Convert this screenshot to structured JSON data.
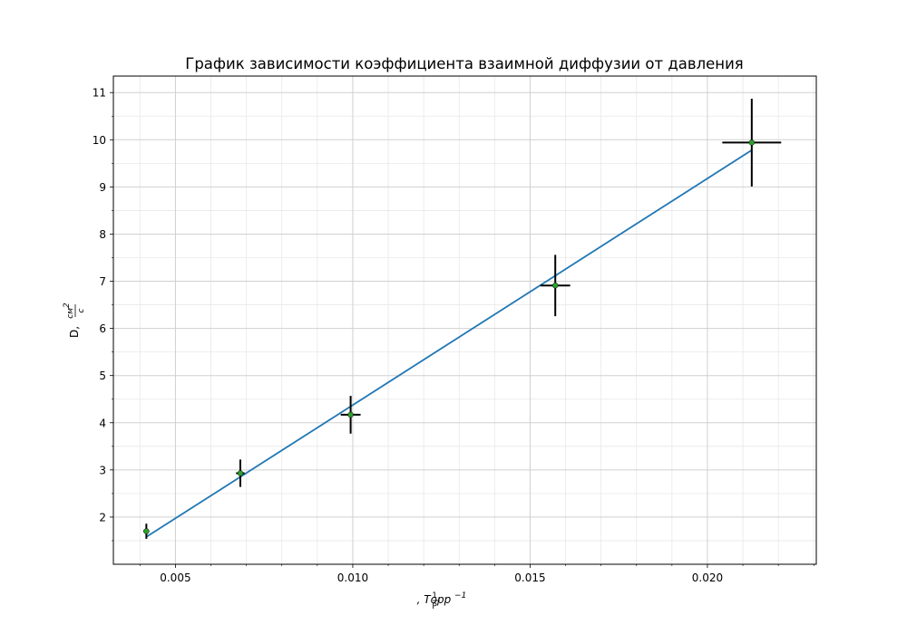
{
  "chart_data": {
    "type": "scatter",
    "title": "График зависимости коэффициента взаимной диффузии от давления",
    "xlabel": {
      "frac_num": "1",
      "frac_den": "P",
      "text": ", Торр",
      "sup": "−1"
    },
    "ylabel": {
      "text": "D, ",
      "frac_num": "см",
      "frac_num_sup": "2",
      "frac_den": "с"
    },
    "xlim": [
      0.00325,
      0.02307
    ],
    "ylim": [
      1.0,
      11.35
    ],
    "xticks": [
      0.005,
      0.01,
      0.015,
      0.02
    ],
    "xtick_labels": [
      "0.005",
      "0.010",
      "0.015",
      "0.020"
    ],
    "yticks": [
      2,
      3,
      4,
      5,
      6,
      7,
      8,
      9,
      10,
      11
    ],
    "ytick_labels": [
      "2",
      "3",
      "4",
      "5",
      "6",
      "7",
      "8",
      "9",
      "10",
      "11"
    ],
    "grid": true,
    "points": [
      {
        "x": 0.00418,
        "y": 1.7,
        "xerr": 8e-05,
        "yerr": 0.16
      },
      {
        "x": 0.00683,
        "y": 2.93,
        "xerr": 0.00012,
        "yerr": 0.29
      },
      {
        "x": 0.00994,
        "y": 4.17,
        "xerr": 0.00028,
        "yerr": 0.4
      },
      {
        "x": 0.01571,
        "y": 6.91,
        "xerr": 0.00042,
        "yerr": 0.65
      },
      {
        "x": 0.02125,
        "y": 9.94,
        "xerr": 0.00083,
        "yerr": 0.93
      }
    ],
    "fit_line": {
      "x": [
        0.00418,
        0.02125
      ],
      "y": [
        1.58,
        9.78
      ]
    },
    "colors": {
      "fit": "#1f77b4",
      "marker": "#2ca02c",
      "errorbar": "#000000",
      "grid_major": "#d0d0d0",
      "grid_minor": "#e8e8e8"
    }
  }
}
